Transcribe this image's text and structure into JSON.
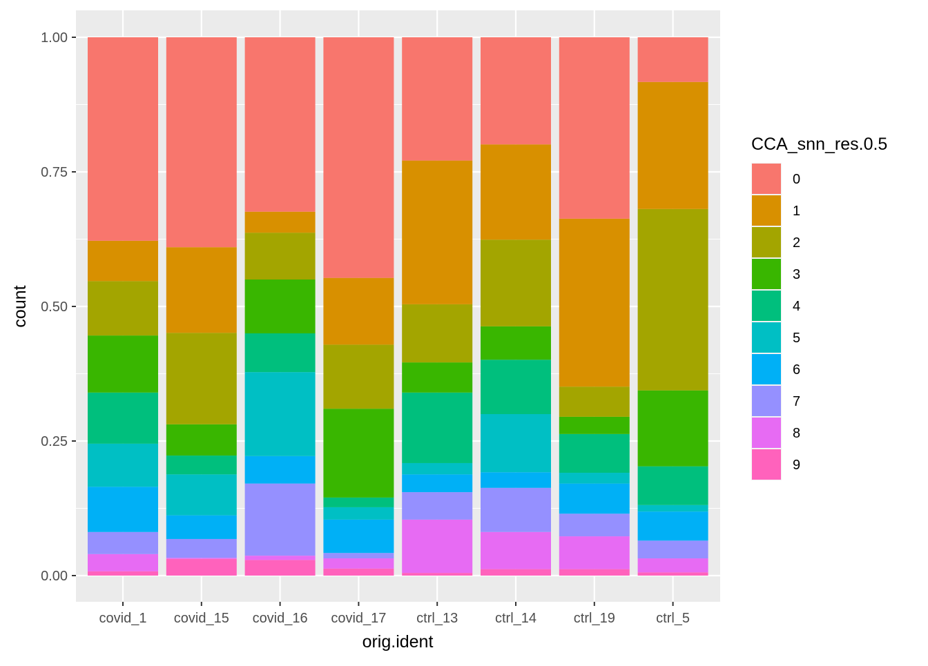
{
  "chart_data": {
    "type": "bar",
    "stacked": true,
    "position": "fill",
    "title": "",
    "xlabel": "orig.ident",
    "ylabel": "count",
    "ylim": [
      0,
      1
    ],
    "yticks": [
      0,
      0.25,
      0.5,
      0.75,
      1.0
    ],
    "ytick_labels": [
      "0.00",
      "0.25",
      "0.50",
      "0.75",
      "1.00"
    ],
    "grid": true,
    "legend": {
      "title": "CCA_snn_res.0.5",
      "placement": "right"
    },
    "categories": [
      "covid_1",
      "covid_15",
      "covid_16",
      "covid_17",
      "ctrl_13",
      "ctrl_14",
      "ctrl_19",
      "ctrl_5"
    ],
    "series": [
      {
        "name": "0",
        "color": "#F8766D",
        "values": [
          0.378,
          0.39,
          0.324,
          0.447,
          0.229,
          0.199,
          0.337,
          0.083
        ]
      },
      {
        "name": "1",
        "color": "#D89000",
        "values": [
          0.075,
          0.159,
          0.039,
          0.124,
          0.267,
          0.177,
          0.312,
          0.236
        ]
      },
      {
        "name": "2",
        "color": "#A3A500",
        "values": [
          0.101,
          0.17,
          0.087,
          0.119,
          0.108,
          0.161,
          0.056,
          0.337
        ]
      },
      {
        "name": "3",
        "color": "#39B600",
        "values": [
          0.106,
          0.058,
          0.1,
          0.165,
          0.056,
          0.062,
          0.032,
          0.141
        ]
      },
      {
        "name": "4",
        "color": "#00BF7D",
        "values": [
          0.095,
          0.035,
          0.072,
          0.018,
          0.131,
          0.101,
          0.072,
          0.072
        ]
      },
      {
        "name": "5",
        "color": "#00BFC4",
        "values": [
          0.08,
          0.076,
          0.156,
          0.023,
          0.021,
          0.108,
          0.02,
          0.012
        ]
      },
      {
        "name": "6",
        "color": "#00B0F6",
        "values": [
          0.084,
          0.044,
          0.051,
          0.062,
          0.033,
          0.029,
          0.056,
          0.054
        ]
      },
      {
        "name": "7",
        "color": "#9590FF",
        "values": [
          0.041,
          0.035,
          0.134,
          0.01,
          0.051,
          0.082,
          0.042,
          0.033
        ]
      },
      {
        "name": "8",
        "color": "#E76BF3",
        "values": [
          0.032,
          0.002,
          0.008,
          0.019,
          0.099,
          0.069,
          0.061,
          0.026
        ]
      },
      {
        "name": "9",
        "color": "#FF62BC",
        "values": [
          0.008,
          0.031,
          0.029,
          0.013,
          0.005,
          0.012,
          0.012,
          0.006
        ]
      }
    ]
  }
}
